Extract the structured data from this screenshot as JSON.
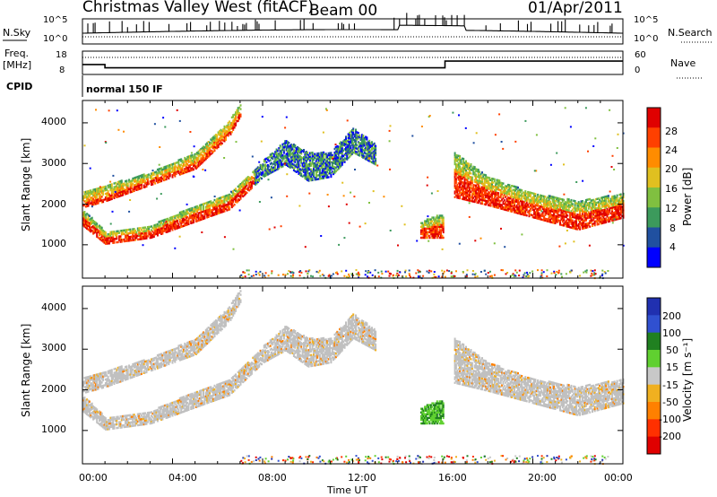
{
  "header": {
    "site_title": "Christmas Valley West (fitACF)",
    "beam": "Beam 00",
    "date": "01/Apr/2011"
  },
  "noise_panel": {
    "left_label": "N.Sky",
    "right_label": "N.Search",
    "left_ticks": [
      "10^5",
      "10^0"
    ],
    "right_ticks": [
      "10^5",
      "10^0"
    ]
  },
  "freq_panel": {
    "left_label_1": "Freq.",
    "left_label_2": "[MHz]",
    "right_label": "Nave",
    "left_ticks": [
      "18",
      "8"
    ],
    "right_ticks": [
      "60",
      "0"
    ]
  },
  "cpid_panel": {
    "label": "CPID",
    "mode_text": "normal 150 IF"
  },
  "power_panel": {
    "ylabel": "Slant Range [km]",
    "y_ticks": [
      "4000",
      "3000",
      "2000",
      "1000"
    ],
    "colorbar_title": "Power [dB]",
    "colorbar_ticks": [
      "28",
      "24",
      "20",
      "16",
      "12",
      "8",
      "4"
    ]
  },
  "velocity_panel": {
    "ylabel": "Slant Range [km]",
    "y_ticks": [
      "4000",
      "3000",
      "2000",
      "1000"
    ],
    "colorbar_title": "Velocity [m s⁻¹]",
    "colorbar_ticks": [
      "200",
      "100",
      "50",
      "15",
      "-15",
      "-50",
      "-100",
      "-200"
    ]
  },
  "x_axis": {
    "ticks": [
      "00:00",
      "04:00",
      "08:00",
      "12:00",
      "16:00",
      "20:00",
      "00:00"
    ],
    "label": "Time UT"
  },
  "colors": {
    "power_scale": [
      "#e00000",
      "#ff4000",
      "#ff8c00",
      "#e0c020",
      "#80c040",
      "#3c9a5c",
      "#2050a0",
      "#0000ff"
    ],
    "velocity_scale": [
      "#2030b0",
      "#3050d0",
      "#208020",
      "#60d030",
      "#c8c8c8",
      "#f0b020",
      "#ff8000",
      "#ff3000",
      "#e00000"
    ],
    "ground_scatter": "#c0c0c0"
  },
  "chart_data": {
    "type": "heatmap",
    "x_range_hours": [
      0,
      24
    ],
    "y_range_km": [
      180,
      4550
    ],
    "frequency_mhz": [
      {
        "t_start": 0.0,
        "t_end": 1.0,
        "value": 12
      },
      {
        "t_start": 1.0,
        "t_end": 16.1,
        "value": 10
      },
      {
        "t_start": 16.1,
        "t_end": 24.0,
        "value": 14
      }
    ],
    "power_echo_bands": [
      {
        "name": "upper band",
        "points": [
          [
            0.0,
            1950,
            2350
          ],
          [
            1.0,
            2100,
            2500
          ],
          [
            3.0,
            2500,
            2800
          ],
          [
            5.0,
            2900,
            3300
          ],
          [
            6.5,
            3700,
            4100
          ],
          [
            7.0,
            4200,
            4500
          ]
        ]
      },
      {
        "name": "lower band",
        "points": [
          [
            0.0,
            1500,
            1900
          ],
          [
            1.0,
            1050,
            1350
          ],
          [
            3.0,
            1200,
            1500
          ],
          [
            5.0,
            1600,
            2000
          ],
          [
            6.5,
            1900,
            2300
          ],
          [
            8.0,
            2700,
            3100
          ],
          [
            9.0,
            3000,
            3600
          ],
          [
            10.0,
            2600,
            3300
          ],
          [
            11.0,
            2700,
            3300
          ],
          [
            12.0,
            3300,
            3900
          ],
          [
            13.0,
            3000,
            3500
          ]
        ]
      },
      {
        "name": "dusk band",
        "points": [
          [
            15.0,
            1200,
            1600
          ],
          [
            16.0,
            1200,
            1800
          ]
        ]
      },
      {
        "name": "evening band",
        "points": [
          [
            16.5,
            2200,
            3300
          ],
          [
            18.0,
            2000,
            2700
          ],
          [
            20.0,
            1700,
            2300
          ],
          [
            22.0,
            1400,
            2100
          ],
          [
            24.0,
            1700,
            2300
          ]
        ]
      }
    ]
  }
}
